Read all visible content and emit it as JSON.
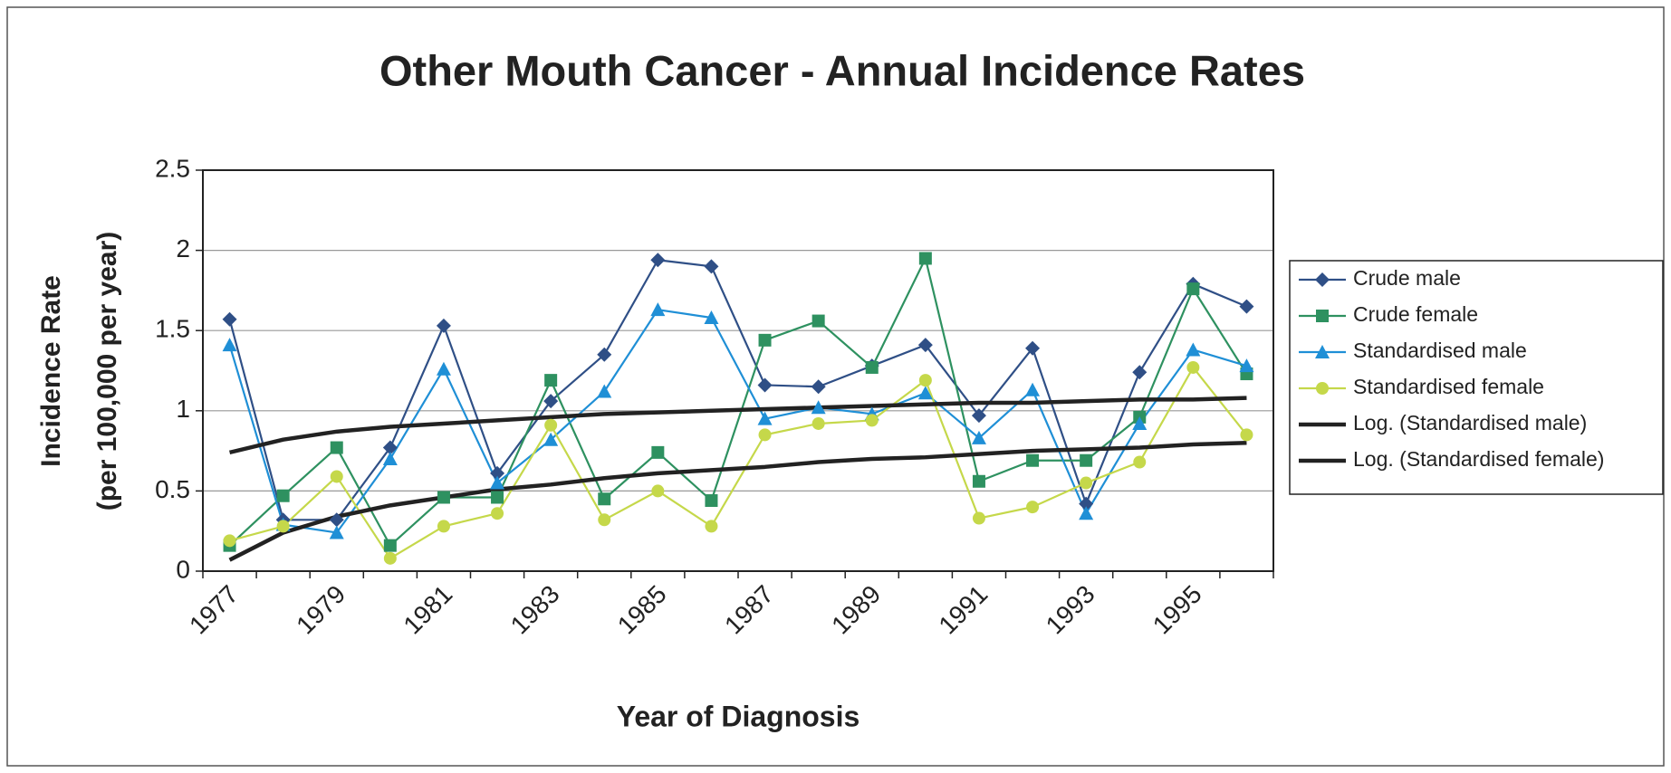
{
  "chart_data": {
    "type": "line",
    "title": "Other Mouth Cancer - Annual Incidence Rates",
    "y_label": "Incidence Rate",
    "y_label_sub": "(per 100,000 per year)",
    "x_label": "Year of Diagnosis",
    "categories": [
      "1977",
      null,
      "1979",
      null,
      "1981",
      null,
      "1983",
      null,
      "1985",
      null,
      "1987",
      null,
      "1989",
      null,
      "1991",
      null,
      "1993",
      null,
      "1995",
      null
    ],
    "ylim": [
      0,
      2.5
    ],
    "yticks": [
      0,
      0.5,
      1,
      1.5,
      2,
      2.5
    ],
    "grid": true,
    "legend": "right",
    "series": [
      {
        "name": "Crude male",
        "color": "#2f4f86",
        "marker": "diamond",
        "values": [
          1.57,
          0.32,
          0.32,
          0.77,
          1.53,
          0.61,
          1.06,
          1.35,
          1.94,
          1.9,
          1.16,
          1.15,
          1.28,
          1.41,
          0.97,
          1.39,
          0.42,
          1.24,
          1.79,
          1.65
        ]
      },
      {
        "name": "Crude female",
        "color": "#2e9160",
        "marker": "square",
        "values": [
          0.16,
          0.47,
          0.77,
          0.16,
          0.46,
          0.46,
          1.19,
          0.45,
          0.74,
          0.44,
          1.44,
          1.56,
          1.27,
          1.95,
          0.56,
          0.69,
          0.69,
          0.96,
          1.76,
          1.23
        ]
      },
      {
        "name": "Standardised male",
        "color": "#1f8fd6",
        "marker": "triangle",
        "values": [
          1.41,
          0.29,
          0.24,
          0.7,
          1.26,
          0.55,
          0.82,
          1.12,
          1.63,
          1.58,
          0.95,
          1.02,
          0.98,
          1.11,
          0.83,
          1.13,
          0.36,
          0.92,
          1.38,
          1.28
        ]
      },
      {
        "name": "Standardised female",
        "color": "#c5d84a",
        "marker": "circle",
        "values": [
          0.19,
          0.28,
          0.59,
          0.08,
          0.28,
          0.36,
          0.91,
          0.32,
          0.5,
          0.28,
          0.85,
          0.92,
          0.94,
          1.19,
          0.33,
          0.4,
          0.55,
          0.68,
          1.27,
          0.85
        ]
      },
      {
        "name": "Log. (Standardised male)",
        "color": "#222222",
        "marker": "none",
        "values": [
          0.74,
          0.82,
          0.87,
          0.9,
          0.92,
          0.94,
          0.96,
          0.98,
          0.99,
          1.0,
          1.01,
          1.02,
          1.03,
          1.04,
          1.05,
          1.05,
          1.06,
          1.07,
          1.07,
          1.08
        ]
      },
      {
        "name": "Log. (Standardised female)",
        "color": "#222222",
        "marker": "none",
        "values": [
          0.07,
          0.24,
          0.34,
          0.41,
          0.46,
          0.51,
          0.54,
          0.58,
          0.61,
          0.63,
          0.65,
          0.68,
          0.7,
          0.71,
          0.73,
          0.75,
          0.76,
          0.77,
          0.79,
          0.8
        ]
      }
    ]
  }
}
